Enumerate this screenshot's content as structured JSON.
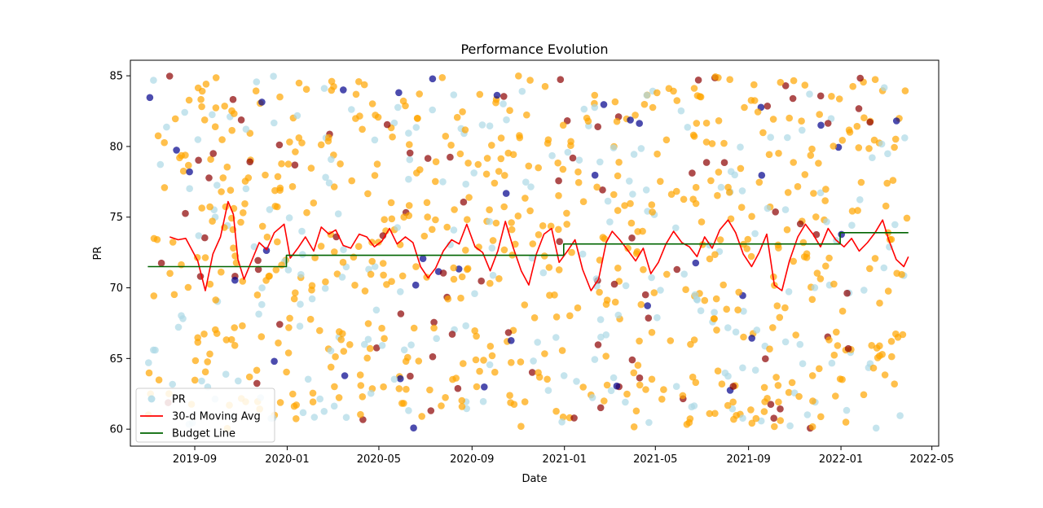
{
  "chart_data": {
    "type": "scatter",
    "title": "Performance Evolution",
    "xlabel": "Date",
    "ylabel": "PR",
    "xlim": [
      "2019-06-08",
      "2022-05-10"
    ],
    "ylim": [
      58.8,
      86.1
    ],
    "x_ticks": [
      "2019-09-01",
      "2020-01-01",
      "2020-05-01",
      "2020-09-01",
      "2021-01-01",
      "2021-05-01",
      "2021-09-01",
      "2022-01-01",
      "2022-05-01"
    ],
    "x_tick_labels": [
      "2019-09",
      "2020-01",
      "2020-05",
      "2020-09",
      "2021-01",
      "2021-05",
      "2021-09",
      "2022-01",
      "2022-05"
    ],
    "y_ticks": [
      60,
      65,
      70,
      75,
      80,
      85
    ],
    "grid": false,
    "legend": {
      "position": "lower-left",
      "entries": [
        {
          "label": "PR",
          "kind": "marker",
          "color": "#add8e6"
        },
        {
          "label": "30-d Moving Avg",
          "kind": "line",
          "color": "#ff0000"
        },
        {
          "label": "Budget Line",
          "kind": "line",
          "color": "#006400"
        }
      ]
    },
    "scatter": {
      "name": "PR",
      "date_range": [
        "2019-07-01",
        "2022-03-31"
      ],
      "y_range": [
        60.0,
        85.0
      ],
      "point_count": 1005,
      "color_categories": {
        "lightblue": "#add8e6",
        "orange": "#ffa500",
        "darkred": "#8b0000",
        "darkblue": "#00008b"
      },
      "category_mix": {
        "lightblue": 0.25,
        "orange": 0.62,
        "darkred": 0.1,
        "darkblue": 0.03
      }
    },
    "series": [
      {
        "name": "30-d Moving Avg",
        "color": "#ff0000",
        "x": [
          "2019-07-30",
          "2019-08-10",
          "2019-08-20",
          "2019-08-27",
          "2019-09-05",
          "2019-09-15",
          "2019-09-25",
          "2019-10-05",
          "2019-10-15",
          "2019-10-22",
          "2019-10-28",
          "2019-11-05",
          "2019-11-15",
          "2019-11-25",
          "2019-12-05",
          "2019-12-15",
          "2019-12-28",
          "2020-01-05",
          "2020-01-15",
          "2020-01-25",
          "2020-02-05",
          "2020-02-15",
          "2020-02-25",
          "2020-03-05",
          "2020-03-15",
          "2020-03-25",
          "2020-04-05",
          "2020-04-15",
          "2020-04-25",
          "2020-05-05",
          "2020-05-15",
          "2020-05-25",
          "2020-06-05",
          "2020-06-15",
          "2020-06-25",
          "2020-07-05",
          "2020-07-15",
          "2020-07-25",
          "2020-08-05",
          "2020-08-15",
          "2020-08-25",
          "2020-09-05",
          "2020-09-15",
          "2020-09-25",
          "2020-10-05",
          "2020-10-15",
          "2020-10-25",
          "2020-11-05",
          "2020-11-15",
          "2020-11-25",
          "2020-12-05",
          "2020-12-15",
          "2020-12-25",
          "2021-01-05",
          "2021-01-15",
          "2021-01-25",
          "2021-02-05",
          "2021-02-15",
          "2021-02-25",
          "2021-03-05",
          "2021-03-15",
          "2021-03-25",
          "2021-04-05",
          "2021-04-15",
          "2021-04-25",
          "2021-05-05",
          "2021-05-15",
          "2021-05-25",
          "2021-06-05",
          "2021-06-15",
          "2021-06-25",
          "2021-07-05",
          "2021-07-15",
          "2021-07-25",
          "2021-08-05",
          "2021-08-15",
          "2021-08-25",
          "2021-09-05",
          "2021-09-15",
          "2021-09-25",
          "2021-10-05",
          "2021-10-15",
          "2021-10-25",
          "2021-11-05",
          "2021-11-15",
          "2021-11-25",
          "2021-12-05",
          "2021-12-15",
          "2021-12-25",
          "2022-01-05",
          "2022-01-15",
          "2022-01-25",
          "2022-02-05",
          "2022-02-15",
          "2022-02-25",
          "2022-03-05",
          "2022-03-15",
          "2022-03-25",
          "2022-03-31"
        ],
        "values": [
          73.6,
          73.4,
          73.5,
          72.8,
          71.9,
          69.8,
          72.4,
          73.6,
          76.1,
          75.2,
          72.0,
          70.6,
          71.9,
          73.2,
          72.7,
          73.9,
          74.5,
          72.1,
          72.8,
          73.6,
          72.6,
          74.3,
          73.8,
          74.1,
          73.0,
          72.8,
          73.8,
          73.6,
          72.9,
          73.3,
          74.2,
          73.1,
          73.6,
          73.2,
          71.5,
          70.7,
          71.4,
          72.6,
          73.4,
          73.1,
          74.5,
          72.9,
          72.5,
          71.2,
          72.6,
          74.7,
          72.9,
          71.2,
          70.2,
          72.4,
          73.8,
          74.2,
          71.8,
          72.6,
          73.4,
          71.3,
          69.8,
          70.6,
          73.2,
          74.0,
          73.4,
          72.7,
          71.9,
          72.8,
          71.0,
          71.8,
          73.1,
          74.0,
          73.2,
          72.9,
          72.2,
          73.6,
          72.8,
          74.1,
          74.8,
          73.9,
          72.4,
          71.5,
          72.5,
          73.8,
          70.2,
          69.8,
          71.9,
          73.6,
          74.5,
          73.8,
          72.9,
          74.2,
          73.4,
          72.9,
          73.5,
          72.6,
          73.2,
          73.9,
          74.8,
          73.4,
          72.0,
          71.5,
          72.2
        ]
      },
      {
        "name": "Budget Line",
        "color": "#006400",
        "step": true,
        "x": [
          "2019-07-01",
          "2019-12-31",
          "2019-12-31",
          "2020-12-31",
          "2020-12-31",
          "2021-12-31",
          "2021-12-31",
          "2022-03-31"
        ],
        "values": [
          71.5,
          71.5,
          72.3,
          72.3,
          73.1,
          73.1,
          73.9,
          73.9
        ]
      }
    ]
  }
}
